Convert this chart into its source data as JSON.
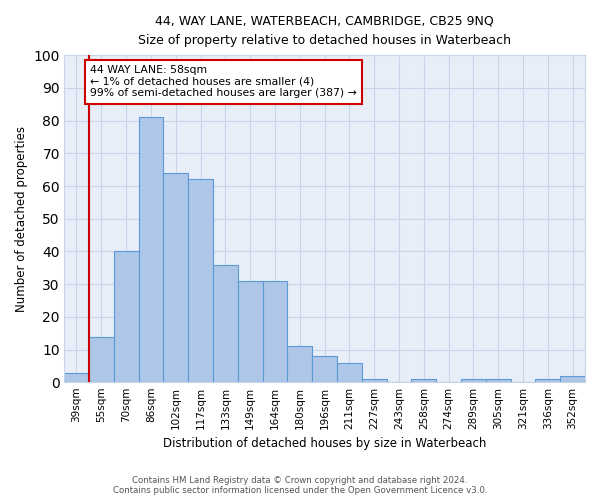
{
  "title": "44, WAY LANE, WATERBEACH, CAMBRIDGE, CB25 9NQ",
  "subtitle": "Size of property relative to detached houses in Waterbeach",
  "xlabel": "Distribution of detached houses by size in Waterbeach",
  "ylabel": "Number of detached properties",
  "bar_labels": [
    "39sqm",
    "55sqm",
    "70sqm",
    "86sqm",
    "102sqm",
    "117sqm",
    "133sqm",
    "149sqm",
    "164sqm",
    "180sqm",
    "196sqm",
    "211sqm",
    "227sqm",
    "243sqm",
    "258sqm",
    "274sqm",
    "289sqm",
    "305sqm",
    "321sqm",
    "336sqm",
    "352sqm"
  ],
  "bar_values": [
    3,
    14,
    40,
    81,
    64,
    62,
    36,
    31,
    31,
    11,
    8,
    6,
    1,
    0,
    1,
    0,
    1,
    1,
    0,
    1,
    2
  ],
  "bar_color": "#aec6e8",
  "bar_edge_color": "#5b9bd5",
  "annotation_text": "44 WAY LANE: 58sqm\n← 1% of detached houses are smaller (4)\n99% of semi-detached houses are larger (387) →",
  "annotation_box_color": "#ffffff",
  "annotation_box_edge_color": "#cc0000",
  "ylim": [
    0,
    100
  ],
  "yticks": [
    0,
    10,
    20,
    30,
    40,
    50,
    60,
    70,
    80,
    90,
    100
  ],
  "grid_color": "#c8d4e8",
  "bg_color": "#e8eef8",
  "footer_line1": "Contains HM Land Registry data © Crown copyright and database right 2024.",
  "footer_line2": "Contains public sector information licensed under the Open Government Licence v3.0.",
  "property_line_color": "#cc0000",
  "property_line_xindex": 1.5
}
